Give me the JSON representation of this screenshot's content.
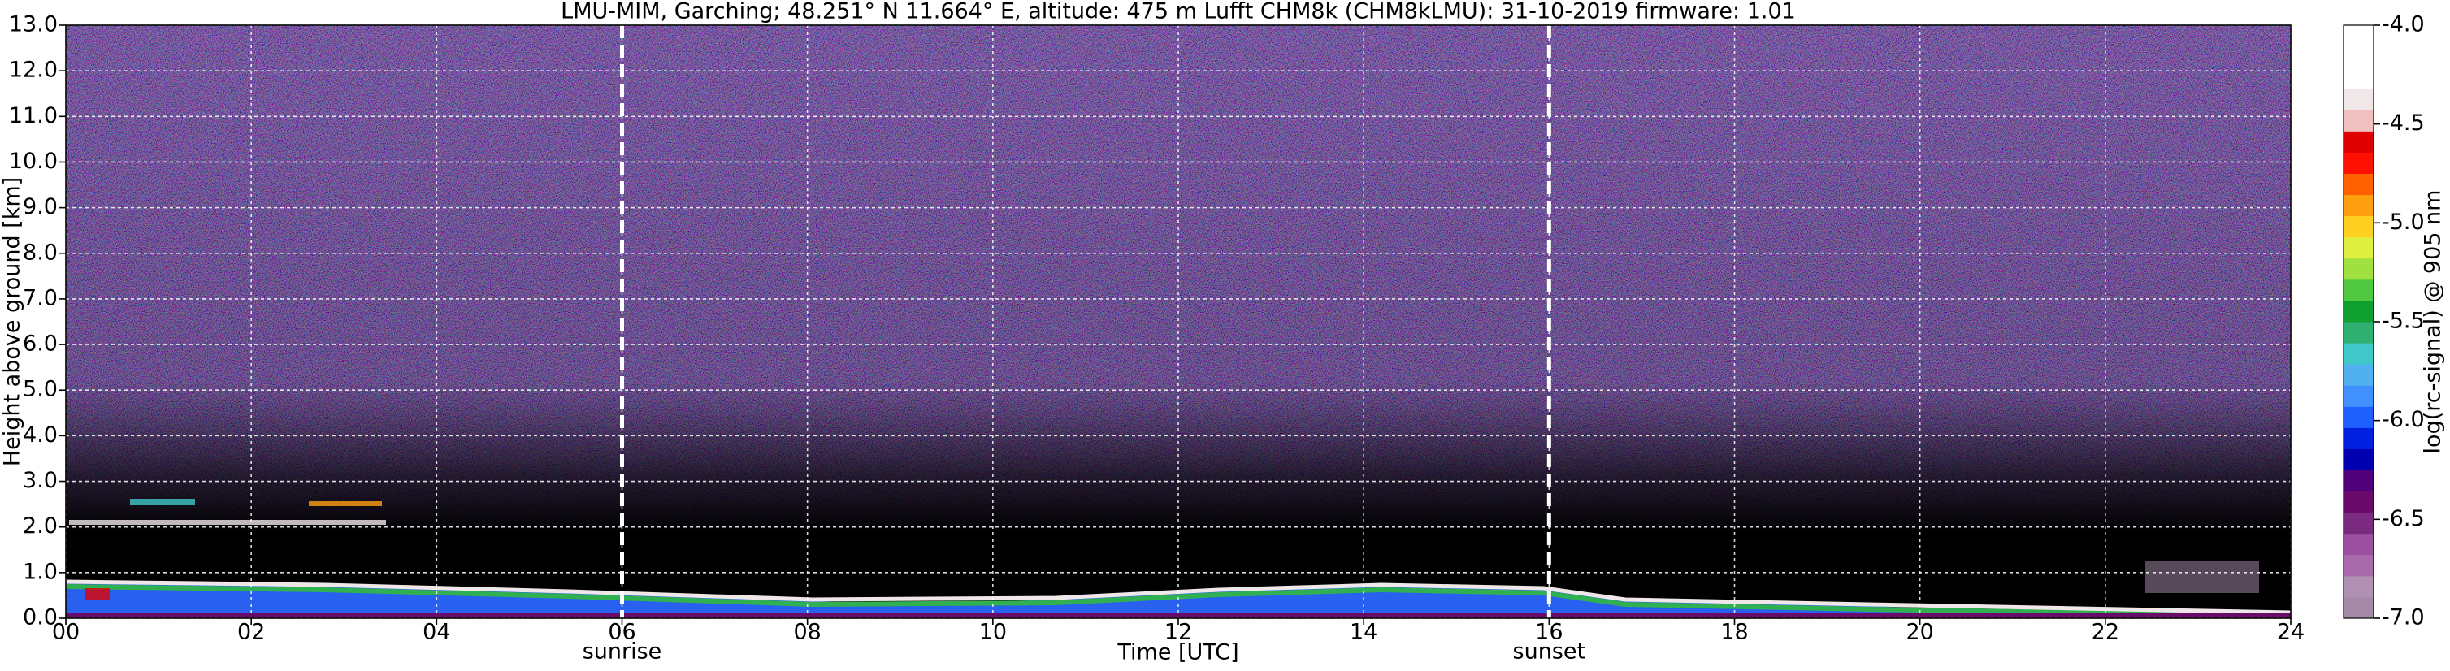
{
  "chart_data": {
    "type": "heatmap",
    "title": "LMU-MIM, Garching; 48.251° N 11.664° E, altitude: 475 m    Lufft CHM8k (CHM8kLMU): 31-10-2019    firmware: 1.01",
    "x_label": "Time [UTC]",
    "y_label": "Height above ground [km]",
    "xlim": [
      0,
      24
    ],
    "xticks": [
      {
        "value": 0,
        "label": "00"
      },
      {
        "value": 2,
        "label": "02"
      },
      {
        "value": 4,
        "label": "04"
      },
      {
        "value": 6,
        "label": "06"
      },
      {
        "value": 8,
        "label": "08"
      },
      {
        "value": 10,
        "label": "10"
      },
      {
        "value": 12,
        "label": "12"
      },
      {
        "value": 14,
        "label": "14"
      },
      {
        "value": 16,
        "label": "16"
      },
      {
        "value": 18,
        "label": "18"
      },
      {
        "value": 20,
        "label": "20"
      },
      {
        "value": 22,
        "label": "22"
      },
      {
        "value": 24,
        "label": "24"
      }
    ],
    "ylim": [
      0,
      13
    ],
    "yticks": [
      {
        "value": 0,
        "label": "0.0"
      },
      {
        "value": 1,
        "label": "1.0"
      },
      {
        "value": 2,
        "label": "2.0"
      },
      {
        "value": 3,
        "label": "3.0"
      },
      {
        "value": 4,
        "label": "4.0"
      },
      {
        "value": 5,
        "label": "5.0"
      },
      {
        "value": 6,
        "label": "6.0"
      },
      {
        "value": 7,
        "label": "7.0"
      },
      {
        "value": 8,
        "label": "8.0"
      },
      {
        "value": 9,
        "label": "9.0"
      },
      {
        "value": 10,
        "label": "10.0"
      },
      {
        "value": 11,
        "label": "11.0"
      },
      {
        "value": 12,
        "label": "12.0"
      },
      {
        "value": 13,
        "label": "13.0"
      }
    ],
    "grid": true,
    "annotations": [
      {
        "x": 6,
        "label": "sunrise"
      },
      {
        "x": 16,
        "label": "sunset"
      }
    ],
    "colorbar": {
      "label": "log(rc-signal) @ 905 nm",
      "lim": [
        -7.0,
        -4.0
      ],
      "ticks": [
        {
          "value": -7.0,
          "label": "-7.0"
        },
        {
          "value": -6.5,
          "label": "-6.5"
        },
        {
          "value": -6.0,
          "label": "-6.0"
        },
        {
          "value": -5.5,
          "label": "-5.5"
        },
        {
          "value": -5.0,
          "label": "-5.0"
        },
        {
          "value": -4.5,
          "label": "-4.5"
        },
        {
          "value": -4.0,
          "label": "-4.0"
        }
      ],
      "colors": [
        "#a58aa8",
        "#b091b4",
        "#a86aab",
        "#9c4f9f",
        "#7b2b7f",
        "#6a0a6a",
        "#50007a",
        "#0000b0",
        "#0020e0",
        "#2060ff",
        "#4090ff",
        "#50b0f0",
        "#40c8c8",
        "#30b070",
        "#10a030",
        "#50c840",
        "#a0e040",
        "#e0f040",
        "#ffd020",
        "#ffa010",
        "#ff6000",
        "#ff1000",
        "#e00000",
        "#f0c0c0",
        "#f0e8e8",
        "#ffffff",
        "#ffffff",
        "#ffffff"
      ]
    }
  }
}
